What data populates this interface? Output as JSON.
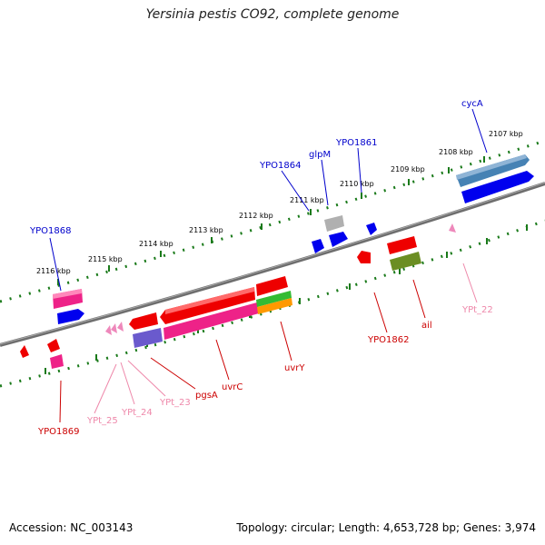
{
  "title": "Yersinia pestis CO92, complete genome",
  "footer": {
    "accession": "Accession: NC_003143",
    "summary": "Topology: circular; Length: 4,653,728 bp; Genes: 3,974"
  },
  "colors": {
    "backbone": "#777777",
    "tick": "#1a7a1a",
    "label_blue": "#0000cc",
    "label_red": "#cc0000",
    "label_pink": "#ee88aa"
  },
  "kbp_labels": [
    "2107 kbp",
    "2108 kbp",
    "2109 kbp",
    "2110 kbp",
    "2111 kbp",
    "2112 kbp",
    "2113 kbp",
    "2114 kbp",
    "2115 kbp",
    "2116 kbp"
  ],
  "gene_labels": {
    "cycA": "cycA",
    "YPO1861": "YPO1861",
    "glpM": "glpM",
    "YPO1864": "YPO1864",
    "YPO1868": "YPO1868",
    "YPO1869": "YPO1869",
    "YPt_25": "YPt_25",
    "YPt_24": "YPt_24",
    "YPt_23": "YPt_23",
    "pgsA": "pgsA",
    "uvrC": "uvrC",
    "uvrY": "uvrY",
    "YPO1862": "YPO1862",
    "ail": "ail",
    "YPt_22": "YPt_22"
  }
}
